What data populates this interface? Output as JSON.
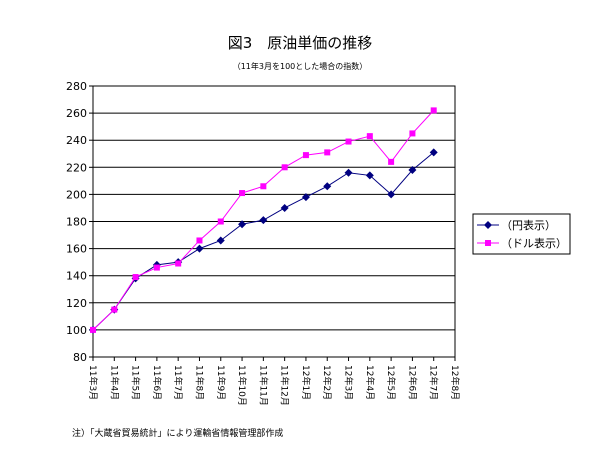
{
  "chart_data": {
    "type": "line",
    "title": "図3　原油単価の推移",
    "subtitle": "（11年3月を100とした場合の指数）",
    "annotations": [
      "注）「大蔵省貿易統計」により運輸省情報管理部作成"
    ],
    "categories": [
      "11年3月",
      "11年4月",
      "11年5月",
      "11年6月",
      "11年7月",
      "11年8月",
      "11年9月",
      "11年10月",
      "11年11月",
      "11年12月",
      "12年1月",
      "12年2月",
      "12年3月",
      "12年4月",
      "12年5月",
      "12年6月",
      "12年7月",
      "12年8月"
    ],
    "series": [
      {
        "name": "（円表示）",
        "color": "#000080",
        "marker": "diamond",
        "values": [
          100,
          115,
          138,
          148,
          150,
          160,
          166,
          178,
          181,
          190,
          198,
          206,
          216,
          214,
          200,
          218,
          231,
          null
        ]
      },
      {
        "name": "（ドル表示）",
        "color": "#ff00ff",
        "marker": "square",
        "values": [
          100,
          115,
          139,
          146,
          149,
          166,
          180,
          201,
          206,
          220,
          229,
          231,
          239,
          243,
          224,
          245,
          262,
          null
        ]
      }
    ],
    "ylim": [
      80,
      280
    ],
    "yticks": [
      80,
      100,
      120,
      140,
      160,
      180,
      200,
      220,
      240,
      260,
      280
    ],
    "grid": true,
    "legend": "right"
  }
}
